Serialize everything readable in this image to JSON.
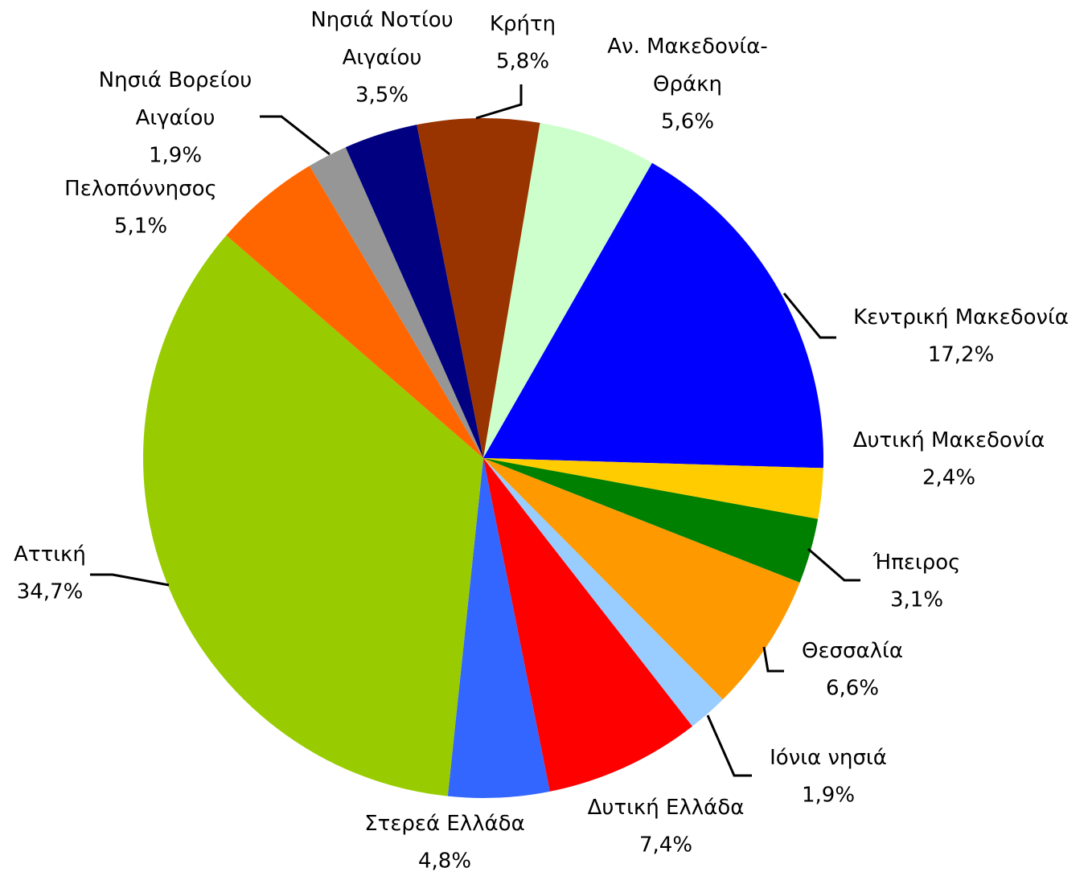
{
  "chart_data": {
    "type": "pie",
    "categories": [
      "Αν. Μακεδονία-Θράκη",
      "Κεντρική Μακεδονία",
      "Δυτική Μακεδονία",
      "Ήπειρος",
      "Θεσσαλία",
      "Ιόνια νησιά",
      "Δυτική Ελλάδα",
      "Στερεά Ελλάδα",
      "Αττική",
      "Πελοπόννησος",
      "Νησιά Βορείου Αιγαίου",
      "Νησιά Νοτίου Αιγαίου",
      "Κρήτη"
    ],
    "values": [
      5.6,
      17.2,
      2.4,
      3.1,
      6.6,
      1.9,
      7.4,
      4.8,
      34.7,
      5.1,
      1.9,
      3.5,
      5.8
    ],
    "value_labels": [
      "5,6%",
      "17,2%",
      "2,4%",
      "3,1%",
      "6,6%",
      "1,9%",
      "7,4%",
      "4,8%",
      "34,7%",
      "5,1%",
      "1,9%",
      "3,5%",
      "5,8%"
    ],
    "colors": [
      "#ccffcc",
      "#0000ff",
      "#ffcc00",
      "#008000",
      "#ff9900",
      "#99ccff",
      "#ff0000",
      "#3366ff",
      "#99cc00",
      "#ff6600",
      "#969696",
      "#000080",
      "#993300"
    ]
  }
}
